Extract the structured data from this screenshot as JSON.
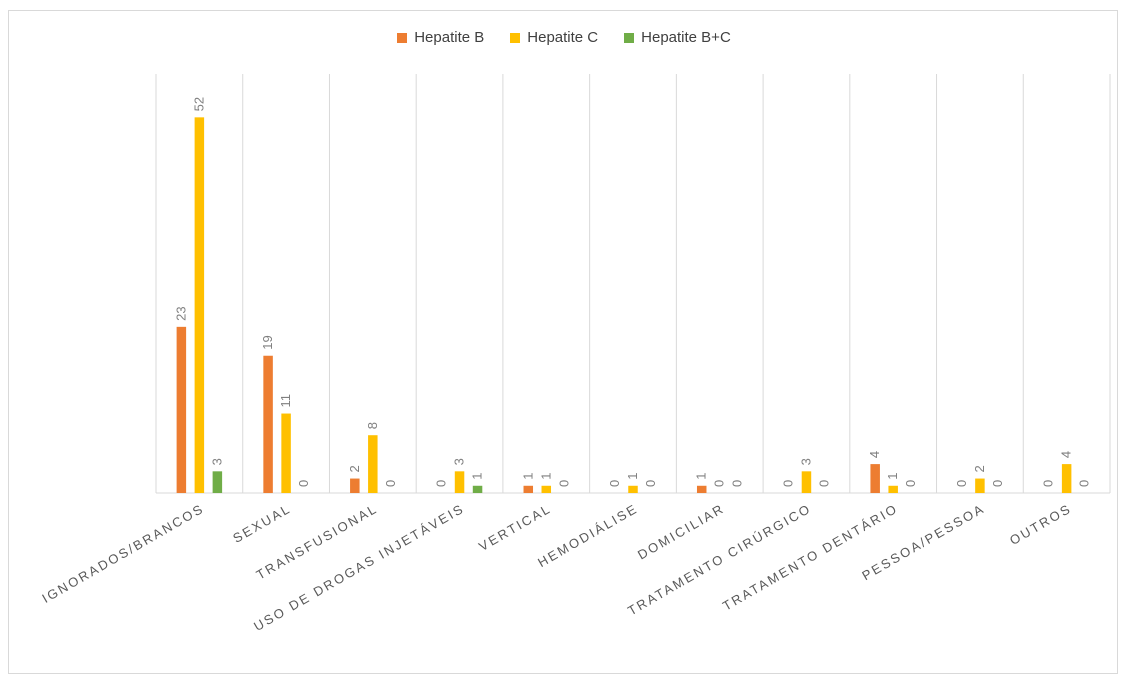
{
  "chart_data": {
    "type": "bar",
    "title": "",
    "xlabel": "",
    "ylabel": "",
    "ylim": [
      0,
      58
    ],
    "grid": "vertical-category-separators",
    "legend": "top-center",
    "categories": [
      "IGNORADOS/BRANCOS",
      "SEXUAL",
      "TRANSFUSIONAL",
      "USO DE DROGAS INJETÁVEIS",
      "VERTICAL",
      "HEMODIÁLISE",
      "DOMICILIAR",
      "TRATAMENTO CIRÚRGICO",
      "TRATAMENTO DENTÁRIO",
      "PESSOA/PESSOA",
      "OUTROS"
    ],
    "series": [
      {
        "name": "Hepatite B",
        "color": "#ed7d31",
        "values": [
          23,
          19,
          2,
          0,
          1,
          0,
          1,
          0,
          4,
          0,
          0
        ]
      },
      {
        "name": "Hepatite C",
        "color": "#ffc000",
        "values": [
          52,
          11,
          8,
          3,
          1,
          1,
          0,
          3,
          1,
          2,
          4
        ]
      },
      {
        "name": "Hepatite B+C",
        "color": "#70ad47",
        "values": [
          3,
          0,
          0,
          1,
          0,
          0,
          0,
          0,
          0,
          0,
          0
        ]
      }
    ]
  }
}
